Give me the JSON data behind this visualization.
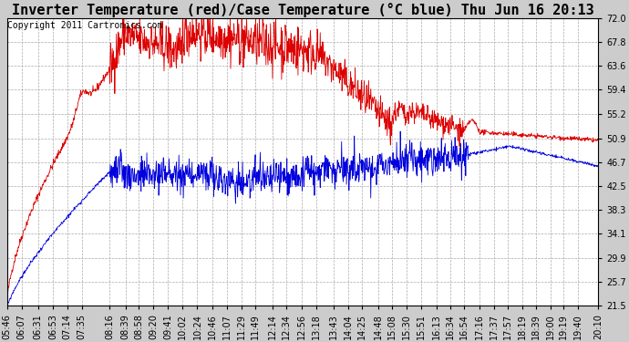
{
  "title": "Inverter Temperature (red)/Case Temperature (°C blue) Thu Jun 16 20:13",
  "copyright": "Copyright 2011 Cartronics.com",
  "ylabel_right_ticks": [
    21.5,
    25.7,
    29.9,
    34.1,
    38.3,
    42.5,
    46.7,
    50.9,
    55.2,
    59.4,
    63.6,
    67.8,
    72.0
  ],
  "ylim": [
    21.5,
    72.0
  ],
  "bg_color": "#cccccc",
  "plot_bg_color": "#ffffff",
  "grid_color": "#aaaaaa",
  "red_color": "#dd0000",
  "blue_color": "#0000dd",
  "n_points": 1440,
  "xtick_labels": [
    "05:46",
    "06:07",
    "06:31",
    "06:53",
    "07:14",
    "07:35",
    "08:16",
    "08:39",
    "08:58",
    "09:20",
    "09:41",
    "10:02",
    "10:24",
    "10:46",
    "11:07",
    "11:29",
    "11:49",
    "12:14",
    "12:34",
    "12:56",
    "13:18",
    "13:43",
    "14:04",
    "14:25",
    "14:48",
    "15:08",
    "15:30",
    "15:51",
    "16:13",
    "16:34",
    "16:54",
    "17:16",
    "17:37",
    "17:57",
    "18:19",
    "18:39",
    "19:00",
    "19:19",
    "19:40",
    "20:10"
  ],
  "title_fontsize": 11,
  "copyright_fontsize": 7,
  "tick_fontsize": 7
}
